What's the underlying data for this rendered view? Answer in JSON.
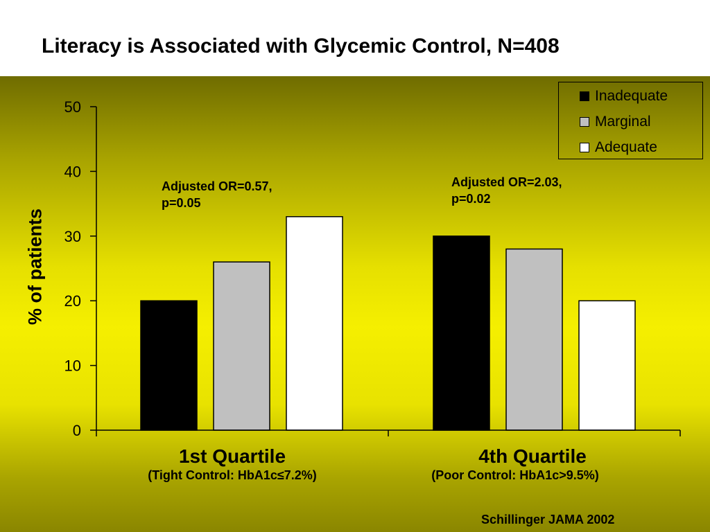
{
  "slide": {
    "title": "Literacy is Associated with Glycemic Control, N=408",
    "source": "Schillinger JAMA 2002"
  },
  "colors": {
    "inadequate": "#000000",
    "marginal": "#c0c0c0",
    "adequate": "#ffffff",
    "background_gradient": [
      "#6f6c00",
      "#f5ef00",
      "#8a8600"
    ]
  },
  "annotations": [
    {
      "line1": "Adjusted OR=0.57,",
      "line2": "p=0.05"
    },
    {
      "line1": "Adjusted OR=2.03,",
      "line2": "p=0.02"
    }
  ],
  "chart_data": {
    "type": "bar",
    "title": "",
    "ylabel": "% of patients",
    "xlabel": "",
    "ylim": [
      0,
      50
    ],
    "yticks": [
      0,
      10,
      20,
      30,
      40,
      50
    ],
    "grid": false,
    "legend_position": "top-right",
    "categories": [
      "1st Quartile",
      "4th Quartile"
    ],
    "category_sublabels": [
      "(Tight Control: HbA1c≤7.2%)",
      "(Poor Control: HbA1c>9.5%)"
    ],
    "series": [
      {
        "name": "Inadequate",
        "values": [
          20,
          30
        ]
      },
      {
        "name": "Marginal",
        "values": [
          26,
          28
        ]
      },
      {
        "name": "Adequate",
        "values": [
          33,
          20
        ]
      }
    ]
  }
}
